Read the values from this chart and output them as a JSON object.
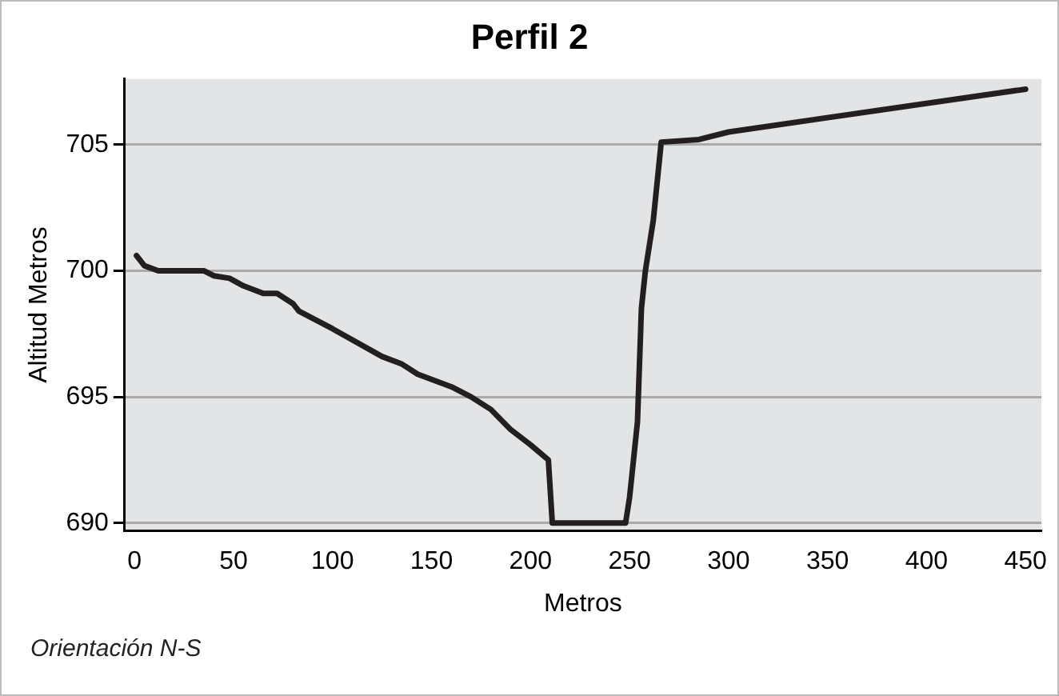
{
  "chart_data": {
    "type": "line",
    "title": "Perfil 2",
    "xlabel": "Metros",
    "ylabel": "Altitud Metros",
    "annotations": [
      "Orientación N-S"
    ],
    "x": [
      1,
      5,
      12,
      35,
      40,
      48,
      55,
      65,
      72,
      80,
      83,
      100,
      125,
      135,
      143,
      160,
      170,
      180,
      190,
      200,
      209,
      211,
      248,
      250,
      254,
      256,
      258,
      262,
      266,
      285,
      300,
      450
    ],
    "series": [
      {
        "color": "#231f20",
        "values": [
          700.6,
          700.2,
          700,
          700,
          699.8,
          699.7,
          699.4,
          699.1,
          699.1,
          698.7,
          698.4,
          697.7,
          696.6,
          696.3,
          695.9,
          695.4,
          695,
          694.5,
          693.7,
          693.1,
          692.5,
          690,
          690,
          691,
          694,
          698.5,
          700,
          702,
          705.1,
          705.2,
          705.5,
          707.2
        ]
      }
    ],
    "xlim": [
      -5,
      458
    ],
    "xticks": [
      0,
      50,
      100,
      150,
      200,
      250,
      300,
      350,
      400,
      450
    ],
    "ylim": [
      689.7,
      707.6
    ],
    "yticks": [
      690,
      695,
      700,
      705
    ],
    "grid": "y",
    "legend": false,
    "marker": "none",
    "line_style": "solid"
  }
}
